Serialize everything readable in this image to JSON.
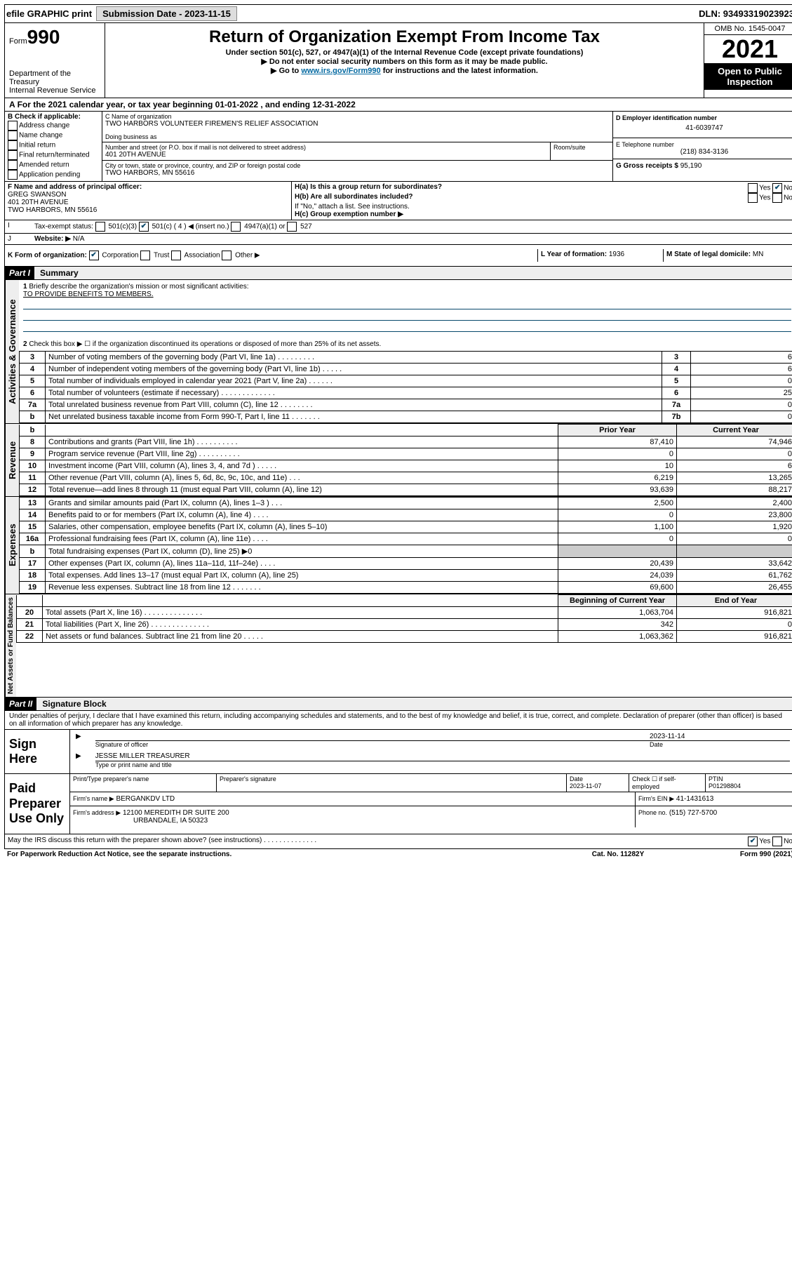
{
  "top_bar": {
    "efile": "efile GRAPHIC print",
    "submission": "Submission Date - 2023-11-15",
    "dln": "DLN: 93493319023923"
  },
  "header": {
    "form": "Form",
    "num": "990",
    "dept": "Department of the Treasury",
    "irs": "Internal Revenue Service",
    "title": "Return of Organization Exempt From Income Tax",
    "sub1": "Under section 501(c), 527, or 4947(a)(1) of the Internal Revenue Code (except private foundations)",
    "sub2": "▶ Do not enter social security numbers on this form as it may be made public.",
    "sub3": "▶ Go to ",
    "link": "www.irs.gov/Form990",
    "sub3b": " for instructions and the latest information.",
    "omb": "OMB No. 1545-0047",
    "year": "2021",
    "open": "Open to Public Inspection"
  },
  "A": {
    "text": "For the 2021 calendar year, or tax year beginning 01-01-2022   , and ending 12-31-2022"
  },
  "B": {
    "label": "B Check if applicable:",
    "items": [
      "Address change",
      "Name change",
      "Initial return",
      "Final return/terminated",
      "Amended return",
      "Application pending"
    ]
  },
  "C": {
    "name_label": "C Name of organization",
    "name": "TWO HARBORS VOLUNTEER FIREMEN'S RELIEF ASSOCIATION",
    "dba_label": "Doing business as",
    "street_label": "Number and street (or P.O. box if mail is not delivered to street address)",
    "room_label": "Room/suite",
    "street": "401 20TH AVENUE",
    "city_label": "City or town, state or province, country, and ZIP or foreign postal code",
    "city": "TWO HARBORS, MN  55616"
  },
  "D": {
    "label": "D Employer identification number",
    "value": "41-6039747"
  },
  "E": {
    "label": "E Telephone number",
    "value": "(218) 834-3136"
  },
  "G": {
    "label": "G Gross receipts $",
    "value": "95,190"
  },
  "F": {
    "label": "F Name and address of principal officer:",
    "name": "GREG SWANSON",
    "addr1": "401 20TH AVENUE",
    "addr2": "TWO HARBORS, MN  55616"
  },
  "H": {
    "a": "H(a)  Is this a group return for subordinates?",
    "b": "H(b)  Are all subordinates included?",
    "note": "If \"No,\" attach a list. See instructions.",
    "c": "H(c)  Group exemption number ▶",
    "yes": "Yes",
    "no": "No"
  },
  "I": {
    "label": "Tax-exempt status:",
    "c3": "501(c)(3)",
    "c": "501(c) ( 4 ) ◀ (insert no.)",
    "a1": "4947(a)(1) or",
    "s527": "527"
  },
  "J": {
    "label": "Website: ▶",
    "value": "N/A"
  },
  "K": {
    "label": "K Form of organization:",
    "corp": "Corporation",
    "trust": "Trust",
    "assoc": "Association",
    "other": "Other ▶"
  },
  "L": {
    "label": "L Year of formation:",
    "value": "1936"
  },
  "M": {
    "label": "M State of legal domicile:",
    "value": "MN"
  },
  "part1": {
    "header": "Part I",
    "title": "Summary",
    "q1": "Briefly describe the organization's mission or most significant activities:",
    "mission": "TO PROVIDE BENEFITS TO MEMBERS.",
    "q2": "Check this box ▶ ☐  if the organization discontinued its operations or disposed of more than 25% of its net assets.",
    "labels": {
      "activities": "Activities & Governance",
      "revenue": "Revenue",
      "expenses": "Expenses",
      "netassets": "Net Assets or Fund Balances"
    },
    "rows": [
      {
        "n": "3",
        "t": "Number of voting members of the governing body (Part VI, line 1a)   .    .    .    .    .    .    .    .    .",
        "c": "3",
        "v": "6"
      },
      {
        "n": "4",
        "t": "Number of independent voting members of the governing body (Part VI, line 1b)   .    .    .    .    .",
        "c": "4",
        "v": "6"
      },
      {
        "n": "5",
        "t": "Total number of individuals employed in calendar year 2021 (Part V, line 2a)   .    .    .    .    .    .",
        "c": "5",
        "v": "0"
      },
      {
        "n": "6",
        "t": "Total number of volunteers (estimate if necessary)   .    .    .    .    .    .    .    .    .    .    .    .    .",
        "c": "6",
        "v": "25"
      },
      {
        "n": "7a",
        "t": "Total unrelated business revenue from Part VIII, column (C), line 12   .    .    .    .    .    .    .    .",
        "c": "7a",
        "v": "0"
      },
      {
        "n": "b",
        "t": "Net unrelated business taxable income from Form 990-T, Part I, line 11   .    .    .    .    .    .    .",
        "c": "7b",
        "v": "0"
      }
    ],
    "cols": {
      "prior": "Prior Year",
      "current": "Current Year"
    },
    "rev": [
      {
        "n": "8",
        "t": "Contributions and grants (Part VIII, line 1h)   .    .    .    .    .    .    .    .    .    .",
        "p": "87,410",
        "c": "74,946"
      },
      {
        "n": "9",
        "t": "Program service revenue (Part VIII, line 2g)   .    .    .    .    .    .    .    .    .    .",
        "p": "0",
        "c": "0"
      },
      {
        "n": "10",
        "t": "Investment income (Part VIII, column (A), lines 3, 4, and 7d )   .    .    .    .    .",
        "p": "10",
        "c": "6"
      },
      {
        "n": "11",
        "t": "Other revenue (Part VIII, column (A), lines 5, 6d, 8c, 9c, 10c, and 11e)   .    .    .",
        "p": "6,219",
        "c": "13,265"
      },
      {
        "n": "12",
        "t": "Total revenue—add lines 8 through 11 (must equal Part VIII, column (A), line 12)",
        "p": "93,639",
        "c": "88,217"
      }
    ],
    "exp": [
      {
        "n": "13",
        "t": "Grants and similar amounts paid (Part IX, column (A), lines 1–3 )   .    .    .",
        "p": "2,500",
        "c": "2,400"
      },
      {
        "n": "14",
        "t": "Benefits paid to or for members (Part IX, column (A), line 4)   .    .    .    .",
        "p": "0",
        "c": "23,800"
      },
      {
        "n": "15",
        "t": "Salaries, other compensation, employee benefits (Part IX, column (A), lines 5–10)",
        "p": "1,100",
        "c": "1,920"
      },
      {
        "n": "16a",
        "t": "Professional fundraising fees (Part IX, column (A), line 11e)   .    .    .    .",
        "p": "0",
        "c": "0"
      },
      {
        "n": "b",
        "t": "Total fundraising expenses (Part IX, column (D), line 25) ▶0",
        "p": "",
        "c": "",
        "shade": true
      },
      {
        "n": "17",
        "t": "Other expenses (Part IX, column (A), lines 11a–11d, 11f–24e)   .    .    .    .",
        "p": "20,439",
        "c": "33,642"
      },
      {
        "n": "18",
        "t": "Total expenses. Add lines 13–17 (must equal Part IX, column (A), line 25)",
        "p": "24,039",
        "c": "61,762"
      },
      {
        "n": "19",
        "t": "Revenue less expenses. Subtract line 18 from line 12   .    .    .    .    .    .    .",
        "p": "69,600",
        "c": "26,455"
      }
    ],
    "netcols": {
      "begin": "Beginning of Current Year",
      "end": "End of Year"
    },
    "net": [
      {
        "n": "20",
        "t": "Total assets (Part X, line 16)   .    .    .    .    .    .    .    .    .    .    .    .    .    .",
        "p": "1,063,704",
        "c": "916,821"
      },
      {
        "n": "21",
        "t": "Total liabilities (Part X, line 26)   .    .    .    .    .    .    .    .    .    .    .    .    .    .",
        "p": "342",
        "c": "0"
      },
      {
        "n": "22",
        "t": "Net assets or fund balances. Subtract line 21 from line 20   .    .    .    .    .",
        "p": "1,063,362",
        "c": "916,821"
      }
    ]
  },
  "part2": {
    "header": "Part II",
    "title": "Signature Block",
    "decl": "Under penalties of perjury, I declare that I have examined this return, including accompanying schedules and statements, and to the best of my knowledge and belief, it is true, correct, and complete. Declaration of preparer (other than officer) is based on all information of which preparer has any knowledge.",
    "sign_here": "Sign Here",
    "sig_officer": "Signature of officer",
    "sig_date": "Date",
    "sig_date_val": "2023-11-14",
    "officer_name": "JESSE MILLER TREASURER",
    "name_label": "Type or print name and title",
    "paid": "Paid Preparer Use Only",
    "prep_name_label": "Print/Type preparer's name",
    "prep_sig_label": "Preparer's signature",
    "prep_date_label": "Date",
    "prep_date": "2023-11-07",
    "check_label": "Check ☐ if self-employed",
    "ptin_label": "PTIN",
    "ptin": "P01298804",
    "firm_name_label": "Firm's name    ▶",
    "firm_name": "BERGANKDV LTD",
    "firm_ein_label": "Firm's EIN ▶",
    "firm_ein": "41-1431613",
    "firm_addr_label": "Firm's address ▶",
    "firm_addr1": "12100 MEREDITH DR SUITE 200",
    "firm_addr2": "URBANDALE, IA  50323",
    "phone_label": "Phone no.",
    "phone": "(515) 727-5700",
    "may_irs": "May the IRS discuss this return with the preparer shown above? (see instructions)   .    .    .    .    .    .    .    .    .    .    .    .    .    .",
    "yes": "Yes",
    "no": "No"
  },
  "footer": {
    "paperwork": "For Paperwork Reduction Act Notice, see the separate instructions.",
    "cat": "Cat. No. 11282Y",
    "form": "Form 990 (2021)"
  }
}
